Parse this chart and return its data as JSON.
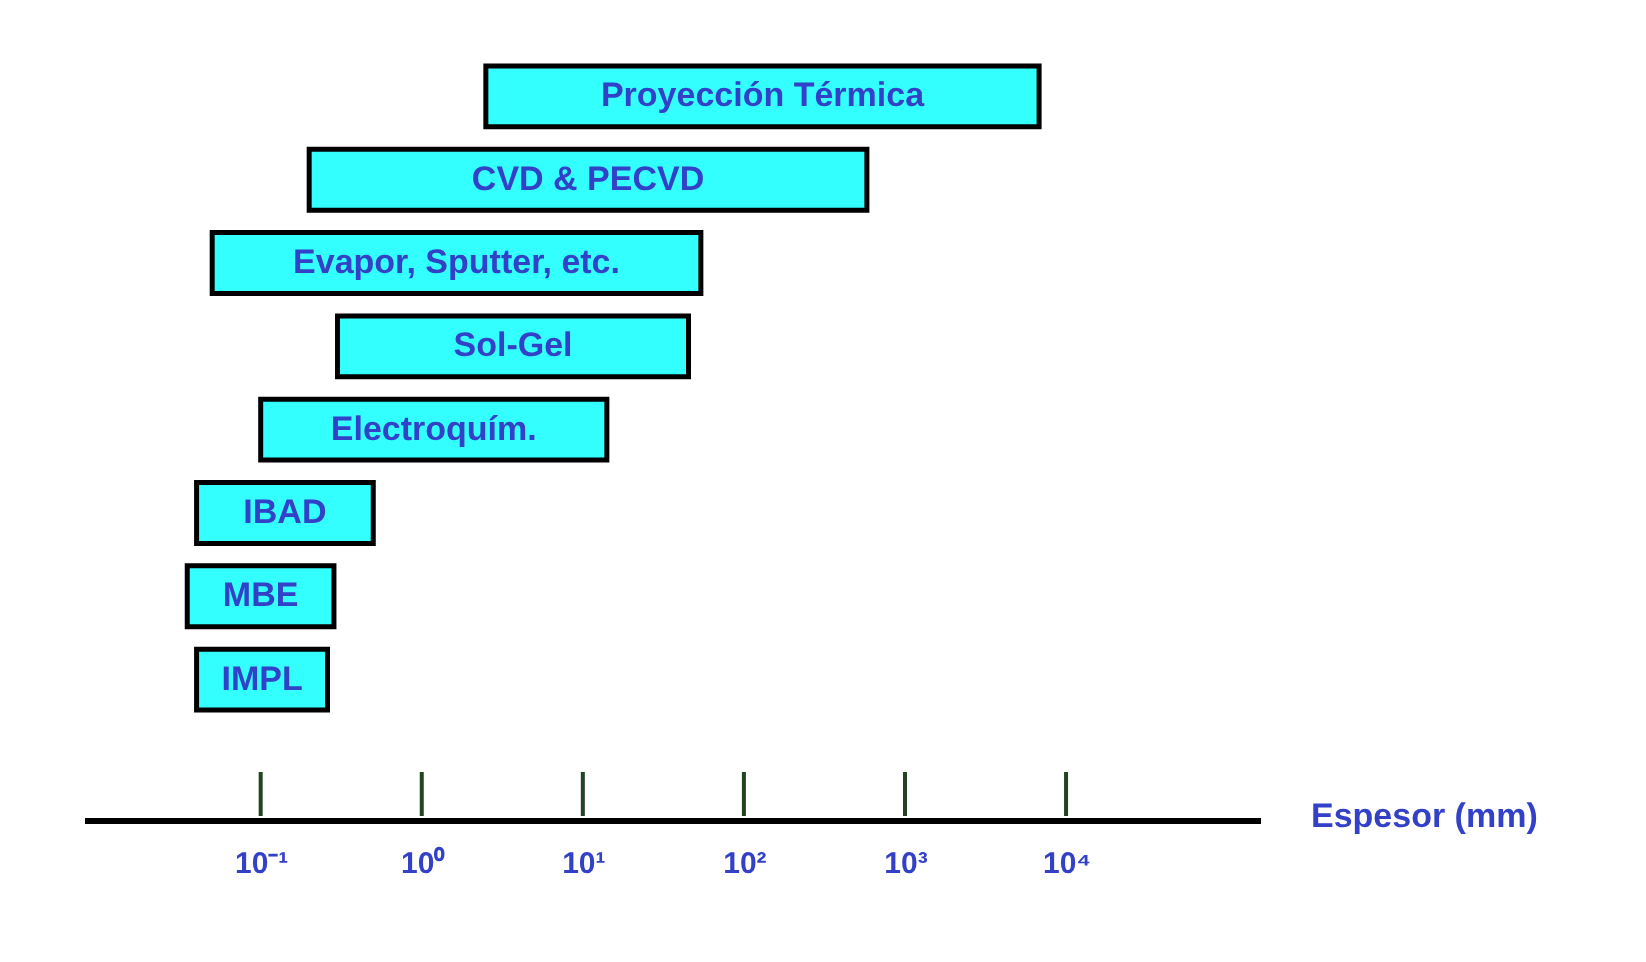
{
  "chart_data": {
    "type": "bar",
    "orientation": "horizontal",
    "log": "x",
    "xlabel": "Espesor (mm)",
    "categories": [
      "Proyección Térmica",
      "CVD & PECVD",
      "Evapor, Sputter, etc.",
      "Sol-Gel",
      "Electroquím.",
      "IBAD",
      "MBE",
      "IMPL"
    ],
    "base": [
      2.5,
      0.2,
      0.05,
      0.3,
      0.1,
      0.04,
      0.035,
      0.04
    ],
    "values": [
      6800,
      580,
      54,
      45,
      14,
      0.46,
      0.25,
      0.22
    ],
    "color": "#33ffff",
    "xlim": [
      0.008,
      160000
    ],
    "xticks": [
      {
        "value": 0.1,
        "label": "10⁻¹"
      },
      {
        "value": 1,
        "label": "10⁰"
      },
      {
        "value": 10,
        "label": "10¹"
      },
      {
        "value": 100,
        "label": "10²"
      },
      {
        "value": 1000,
        "label": "10³"
      },
      {
        "value": 10000,
        "label": "10⁴"
      }
    ],
    "tick_labels": "x",
    "grid": false
  }
}
